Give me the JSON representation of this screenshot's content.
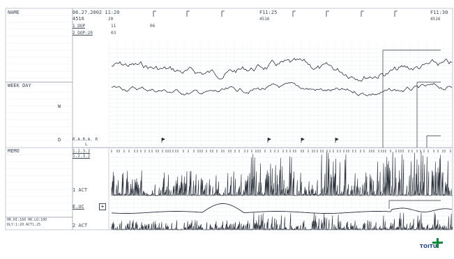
{
  "header": {
    "name_label": "NAME",
    "date_time": "06.27.2002 11:20",
    "time_mark_1": "F11:25",
    "time_mark_2": "F11:30",
    "speed_1": "4516",
    "speed_2": "4516",
    "speed_3": "4516",
    "icon_mark_1": "20",
    "channel_1": "1 DOP",
    "channel_1_mark": "11",
    "channel_1_mark_b": "06",
    "channel_2": "2 DOP-20",
    "channel_2_mark": "03"
  },
  "left_labels": {
    "week_day": "WEEK DAY",
    "w": "W",
    "d": "D",
    "memo": "MEMO",
    "act1": "1 ACT",
    "euc": "E.UC",
    "act2": "2 ACT",
    "settings_1": "HR.HI:160 HR.LO:100",
    "settings_2": "DLY:1:20 ACT1.25",
    "rows_a": "R.A.R.A. R",
    "rows_a2": "L",
    "marks_a": "1.2.3.2",
    "marks_b": "1.2.3.2"
  },
  "brand": {
    "logo_text": "TOITU",
    "logo_color": "#0a8a3a"
  },
  "colors": {
    "trace": "#2a2f3a",
    "grid": "#d6dde6",
    "frame": "#8893a3"
  }
}
